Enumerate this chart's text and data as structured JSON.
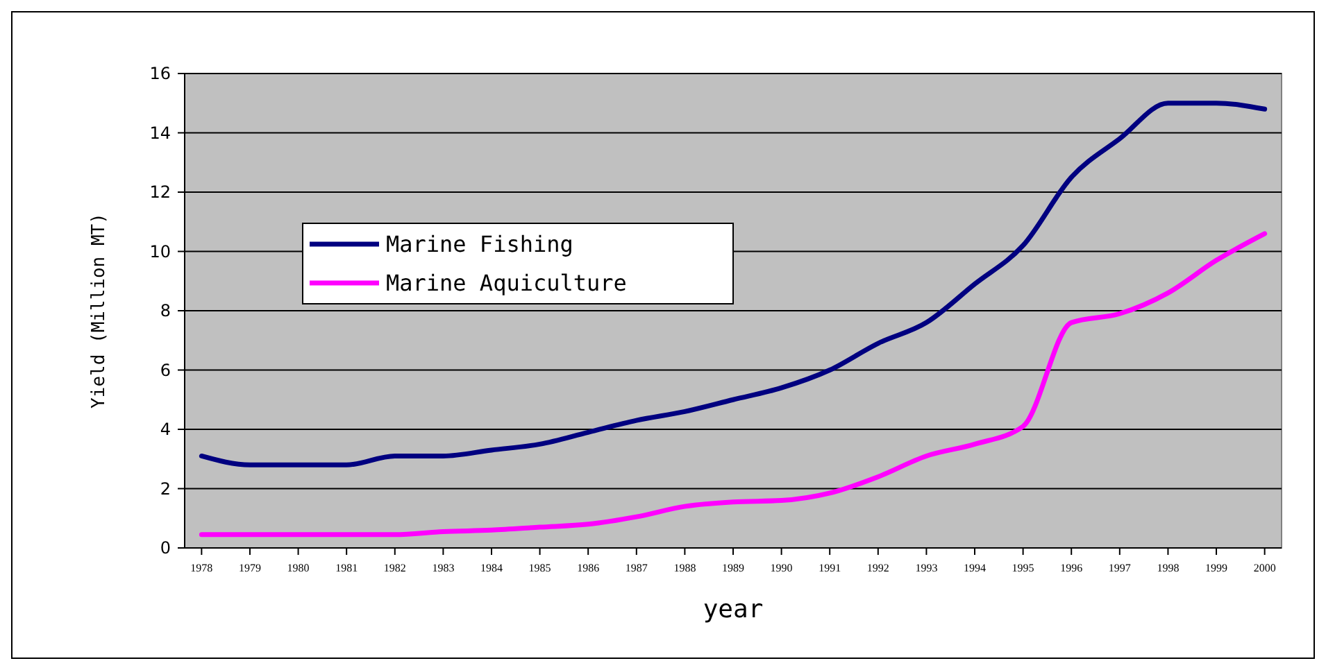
{
  "chart_data": {
    "type": "line",
    "xlabel": "year",
    "ylabel": "Yield (Million MT)",
    "categories": [
      "1978",
      "1979",
      "1980",
      "1981",
      "1982",
      "1983",
      "1984",
      "1985",
      "1986",
      "1987",
      "1988",
      "1989",
      "1990",
      "1991",
      "1992",
      "1993",
      "1994",
      "1995",
      "1996",
      "1997",
      "1998",
      "1999",
      "2000"
    ],
    "series": [
      {
        "name": "Marine Fishing",
        "color": "#000080",
        "values": [
          3.1,
          2.8,
          2.8,
          2.8,
          3.1,
          3.1,
          3.3,
          3.5,
          3.9,
          4.3,
          4.6,
          5.0,
          5.4,
          6.0,
          6.9,
          7.6,
          8.9,
          10.2,
          12.5,
          13.8,
          15.0,
          15.0,
          14.8
        ]
      },
      {
        "name": "Marine Aquiculture",
        "color": "#ff00ff",
        "values": [
          0.45,
          0.45,
          0.45,
          0.45,
          0.45,
          0.55,
          0.6,
          0.7,
          0.8,
          1.05,
          1.4,
          1.55,
          1.6,
          1.85,
          2.4,
          3.1,
          3.5,
          4.1,
          7.6,
          7.9,
          8.6,
          9.7,
          10.6
        ]
      }
    ],
    "ylim": [
      0,
      16
    ],
    "yticks": [
      0,
      2,
      4,
      6,
      8,
      10,
      12,
      14,
      16
    ],
    "grid": "y",
    "legend": "top left",
    "marker": "none",
    "line_style": "solid"
  }
}
